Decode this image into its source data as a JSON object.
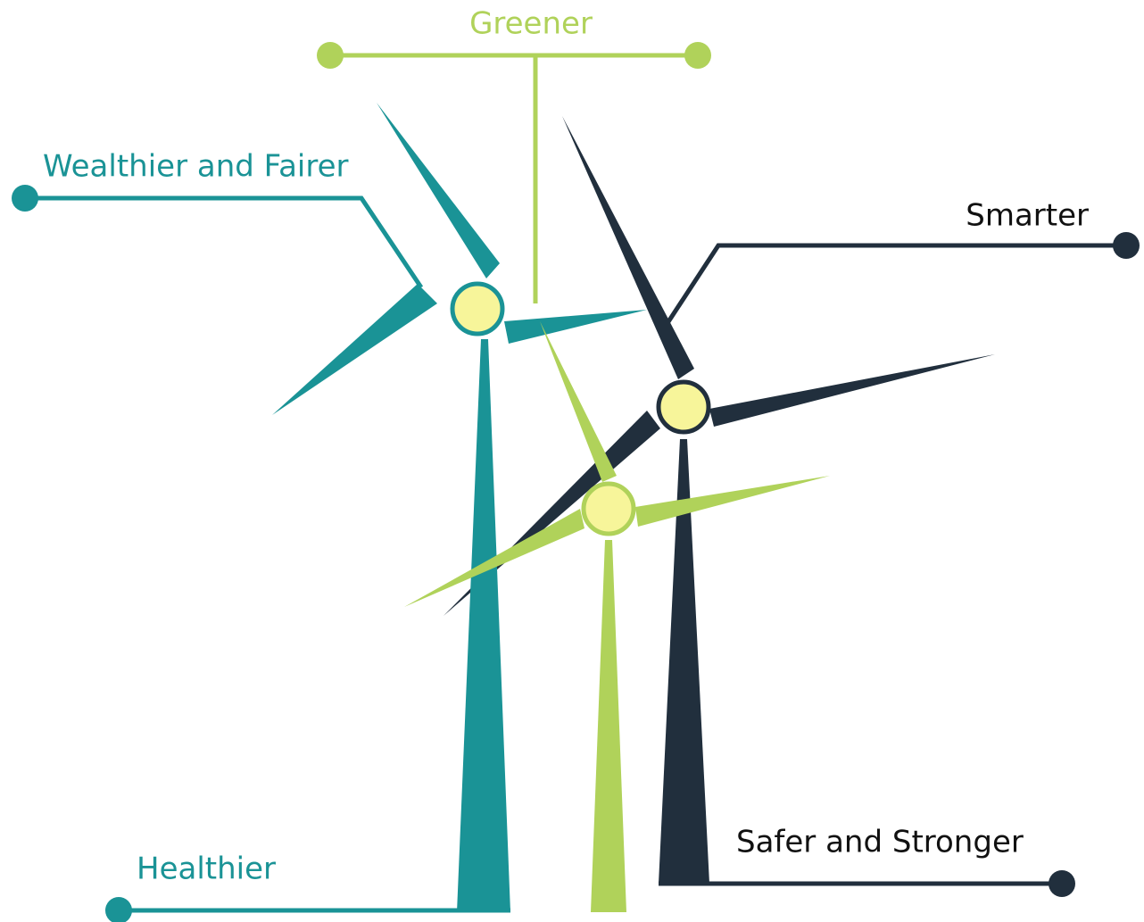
{
  "labels": {
    "greener": "Greener",
    "wealthier": "Wealthier and Fairer",
    "smarter": "Smarter",
    "healthier": "Healthier",
    "safer": "Safer and Stronger"
  }
}
